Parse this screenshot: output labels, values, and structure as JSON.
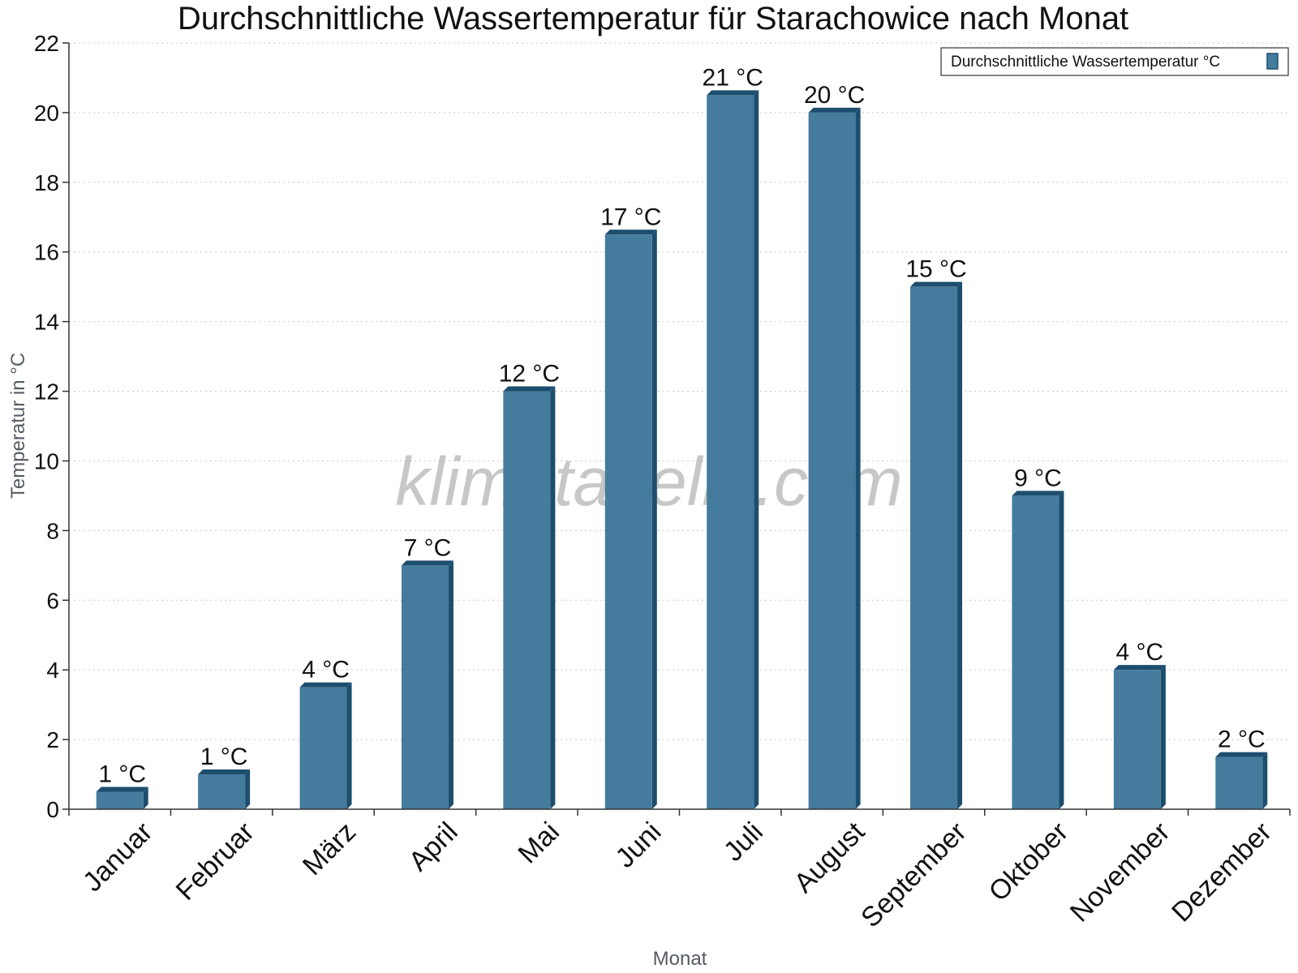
{
  "watermark": "klimatabelle.com",
  "colors": {
    "bar_face": "#457b9d",
    "bar_side": "#1d4e6e",
    "bar_top": "#1d4e6e",
    "grid": "#c8c8c8",
    "axis": "#333333"
  },
  "chart_data": {
    "type": "bar",
    "title": "Durchschnittliche Wassertemperatur für Starachowice nach Monat",
    "xlabel": "Monat",
    "ylabel": "Temperatur in °C",
    "categories": [
      "Januar",
      "Februar",
      "März",
      "April",
      "Mai",
      "Juni",
      "Juli",
      "August",
      "September",
      "Oktober",
      "November",
      "Dezember"
    ],
    "series": [
      {
        "name": "Durchschnittliche Wassertemperatur °C",
        "values": [
          0.5,
          1,
          3.5,
          7,
          12,
          16.5,
          20.5,
          20,
          15,
          9,
          4,
          1.5
        ],
        "labels": [
          "1 °C",
          "1 °C",
          "4 °C",
          "7 °C",
          "12 °C",
          "17 °C",
          "21 °C",
          "20 °C",
          "15 °C",
          "9 °C",
          "4 °C",
          "2 °C"
        ]
      }
    ],
    "ylim": [
      0,
      22
    ],
    "yticks": [
      0,
      2,
      4,
      6,
      8,
      10,
      12,
      14,
      16,
      18,
      20,
      22
    ],
    "grid": true,
    "legend_position": "top-right"
  }
}
